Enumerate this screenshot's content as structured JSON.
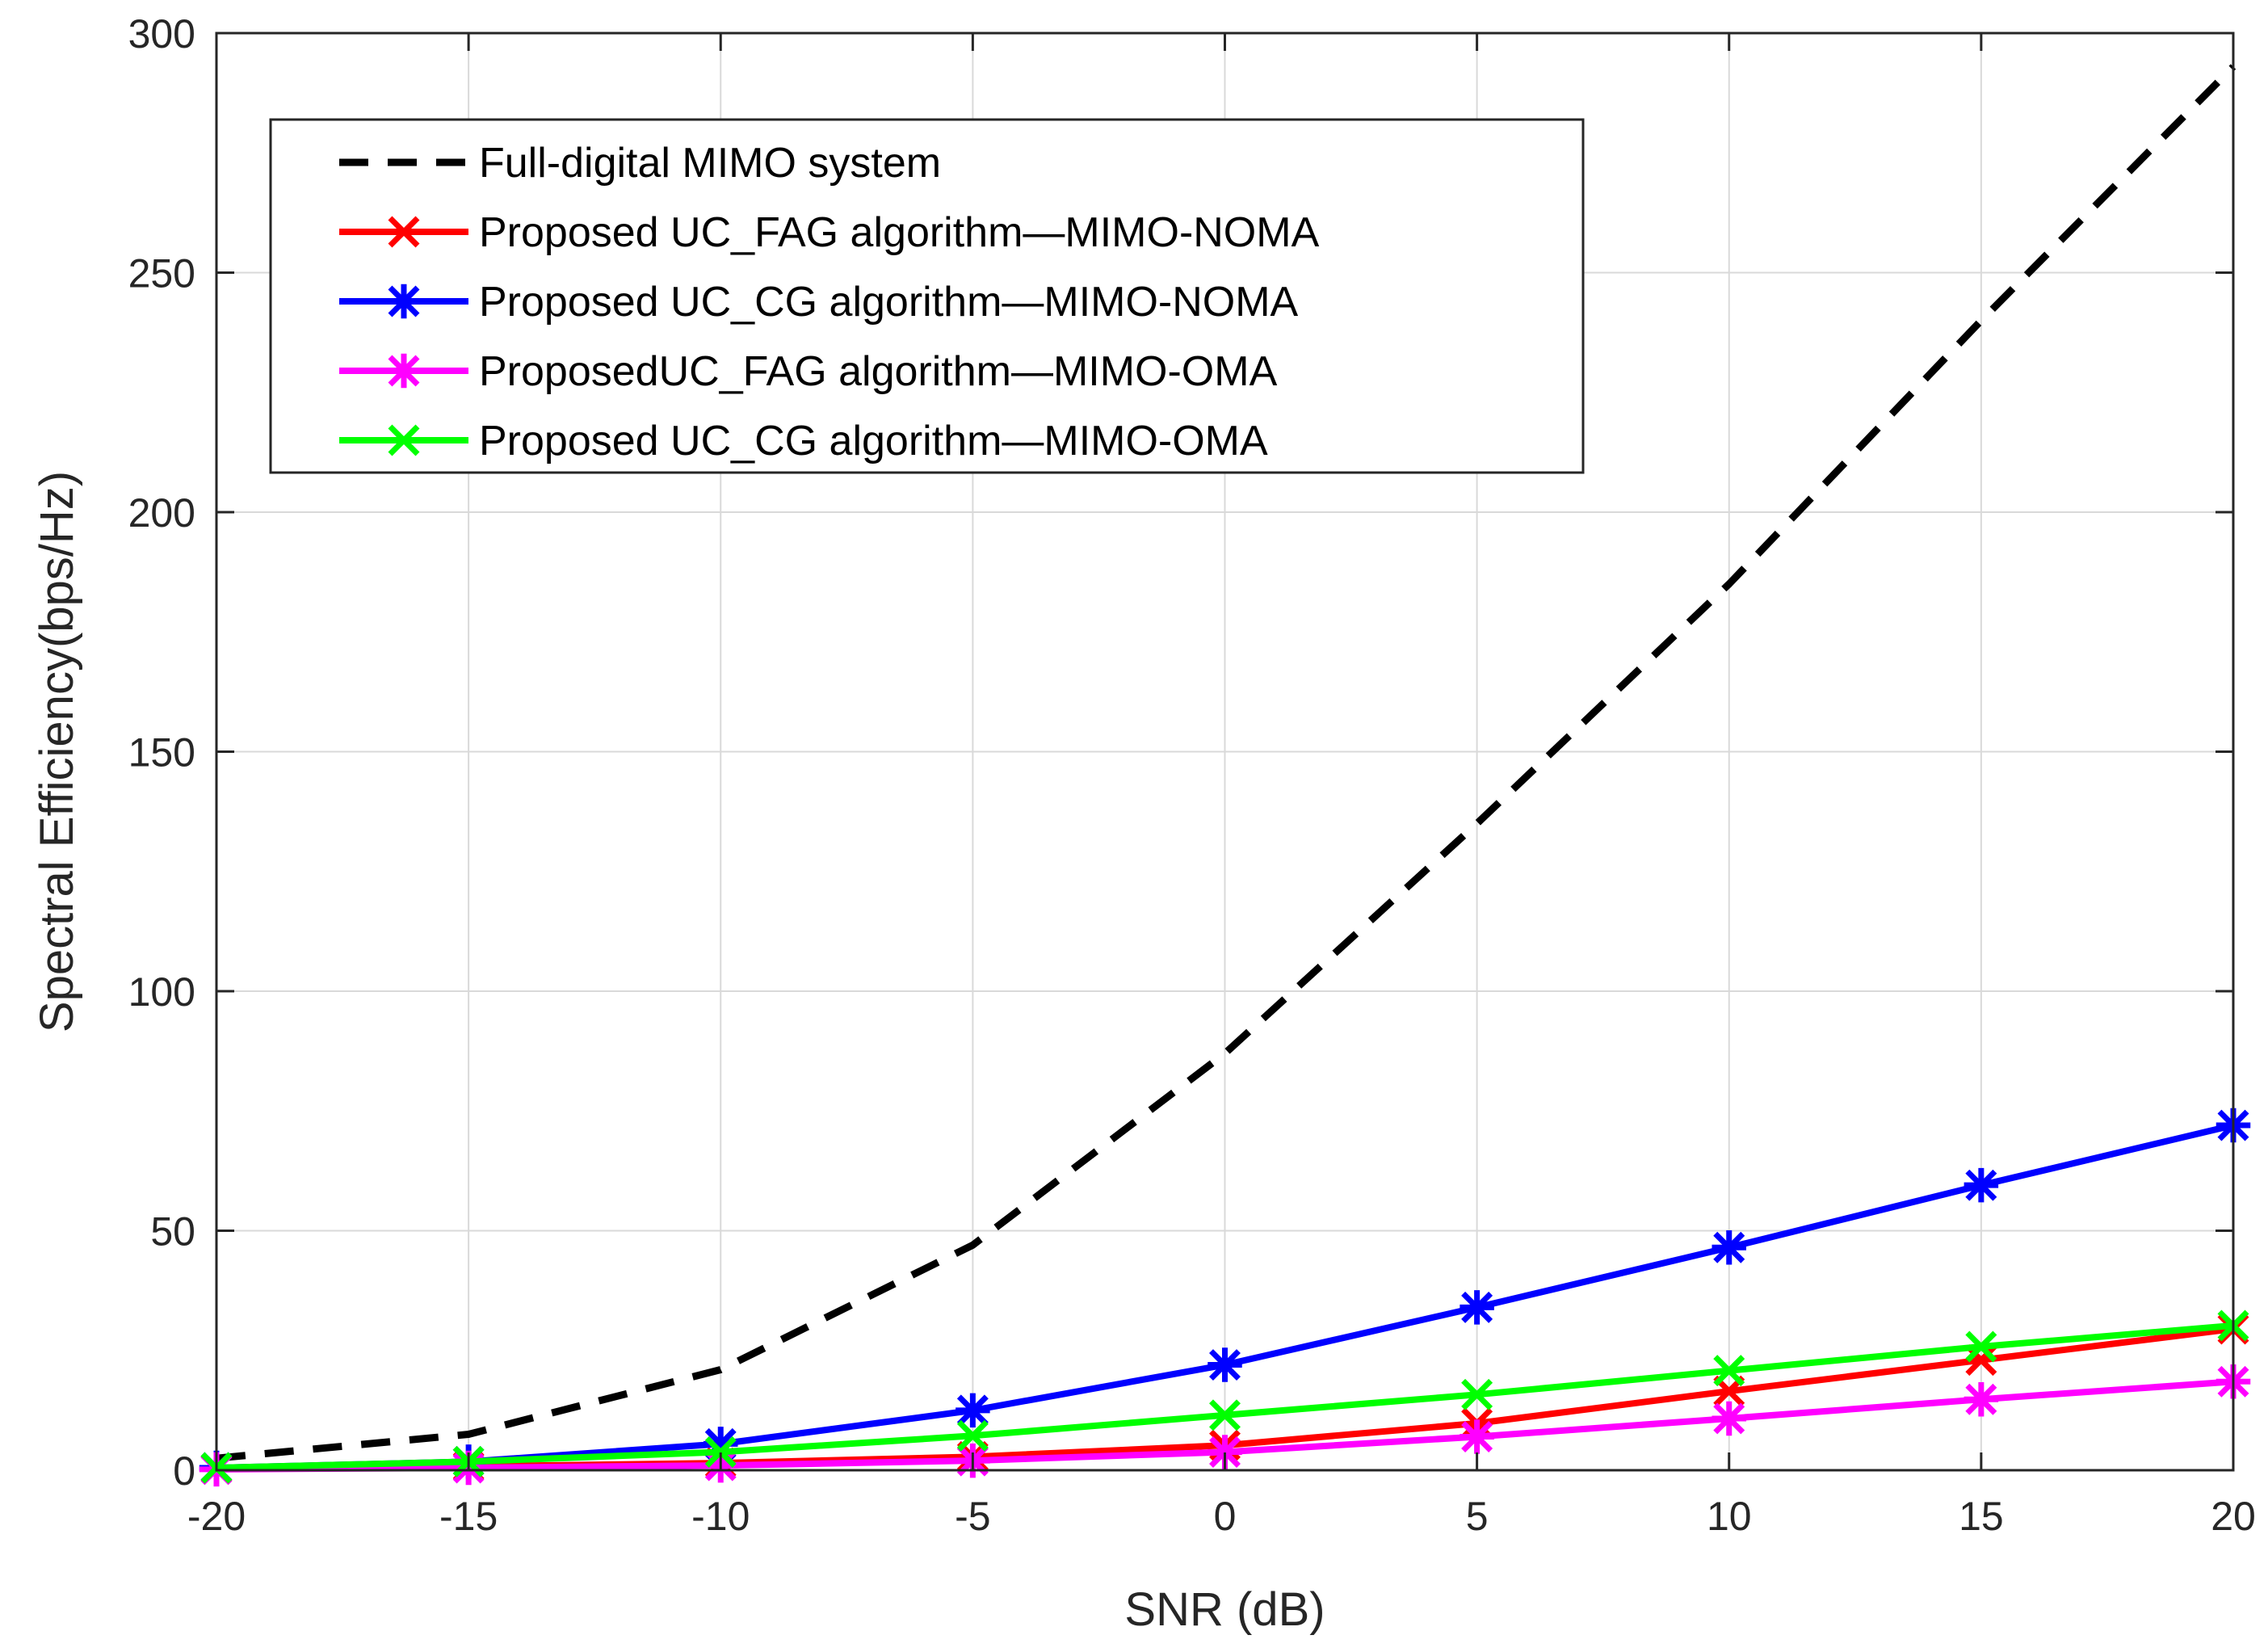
{
  "chart_data": {
    "type": "line",
    "title": "",
    "xlabel": "SNR (dB)",
    "ylabel": "Spectral Efficiency(bps/Hz)",
    "xlim": [
      -20,
      20
    ],
    "ylim": [
      0,
      300
    ],
    "xticks": [
      -20,
      -15,
      -10,
      -5,
      0,
      5,
      10,
      15,
      20
    ],
    "yticks": [
      0,
      50,
      100,
      150,
      200,
      250,
      300
    ],
    "grid": true,
    "legend_position": "top-left",
    "x": [
      -20,
      -15,
      -10,
      -5,
      0,
      5,
      10,
      15,
      20
    ],
    "series": [
      {
        "name": "Full-digital MIMO system",
        "color": "#000000",
        "line_style": "dashed",
        "marker": "none",
        "values": [
          2.5,
          7.5,
          21,
          47,
          87,
          135,
          185,
          240,
          293
        ]
      },
      {
        "name": "Proposed UC_FAG algorithm—MIMO-NOMA",
        "color": "#ff0000",
        "line_style": "solid",
        "marker": "x",
        "values": [
          0.3,
          0.8,
          1.5,
          2.8,
          5.2,
          9.8,
          16.5,
          23,
          29.5
        ]
      },
      {
        "name": "Proposed UC_CG algorithm—MIMO-NOMA",
        "color": "#0000ff",
        "line_style": "solid",
        "marker": "asterisk",
        "values": [
          0.5,
          1.8,
          5.5,
          12.5,
          22,
          34,
          46.5,
          59.5,
          72
        ]
      },
      {
        "name": "ProposedUC_FAG algorithm—MIMO-OMA",
        "color": "#ff00ff",
        "line_style": "solid",
        "marker": "asterisk",
        "values": [
          0.2,
          0.5,
          1.0,
          2.0,
          3.8,
          7.0,
          10.8,
          14.8,
          18.5
        ]
      },
      {
        "name": "Proposed UC_CG algorithm—MIMO-OMA",
        "color": "#00ff00",
        "line_style": "solid",
        "marker": "x",
        "values": [
          0.5,
          1.8,
          3.8,
          7.2,
          11.5,
          15.8,
          20.8,
          25.8,
          30.2
        ]
      }
    ]
  }
}
